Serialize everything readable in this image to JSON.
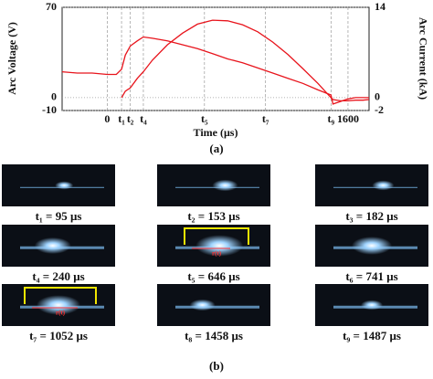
{
  "chart_data": {
    "type": "line",
    "x_label": "Time (μs)",
    "y_label": "Arc Voltage (V)",
    "y2_label": "Arc Current (kA)",
    "x": [
      -300,
      -200,
      -100,
      0,
      60,
      95,
      120,
      153,
      200,
      240,
      300,
      400,
      500,
      600,
      700,
      800,
      900,
      1000,
      1100,
      1200,
      1300,
      1400,
      1487,
      1500,
      1550,
      1600,
      1650,
      1700,
      1740
    ],
    "series": [
      {
        "name": "Arc Voltage",
        "color": "#e8141c",
        "values": [
          20,
          19,
          19,
          18,
          18,
          22,
          33,
          40,
          44,
          47,
          46,
          44,
          41,
          38,
          34,
          30,
          27,
          23,
          19,
          15,
          11,
          6,
          2,
          -5,
          -3,
          -1,
          0,
          0,
          0
        ]
      },
      {
        "name": "Arc Current",
        "color": "#e8141c",
        "axis": "y2",
        "values": [
          null,
          null,
          null,
          null,
          null,
          0,
          1,
          1.5,
          3,
          4,
          5.8,
          8.2,
          10,
          11.4,
          12,
          11.9,
          11.3,
          10.2,
          8.6,
          6.7,
          4.5,
          2.2,
          0,
          -0.3,
          -0.5,
          -0.5,
          -0.4,
          -0.4,
          -0.3
        ]
      }
    ],
    "xlim": [
      -300,
      1740
    ],
    "xticks": [
      0,
      {
        "value": 95,
        "label": "t₁"
      },
      {
        "value": 153,
        "label": "t₂"
      },
      {
        "value": 240,
        "label": "t₄"
      },
      {
        "value": 646,
        "label": "t₅"
      },
      {
        "value": 1052,
        "label": "t₇"
      },
      {
        "value": 1487,
        "label": "t₉"
      },
      1600
    ],
    "ylim": [
      -10,
      70
    ],
    "yticks": [
      -10,
      0,
      70
    ],
    "y2lim": [
      -2,
      14
    ],
    "y2ticks": [
      -2,
      0,
      14
    ],
    "grid": true
  },
  "panel_a_label": "(a)",
  "photos": [
    {
      "caption": "t₁ = 95 μs"
    },
    {
      "caption": "t₂ = 153 μs"
    },
    {
      "caption": "t₃ = 182 μs"
    },
    {
      "caption": "t₄ = 240 μs"
    },
    {
      "caption": "t₅ = 646 μs",
      "annotation": "r(t)"
    },
    {
      "caption": "t₆ = 741 μs"
    },
    {
      "caption": "t₇ = 1052 μs",
      "annotation": "r(t)"
    },
    {
      "caption": "t₈ = 1458 μs"
    },
    {
      "caption": "t₉ = 1487 μs"
    }
  ],
  "panel_b_label": "(b)"
}
